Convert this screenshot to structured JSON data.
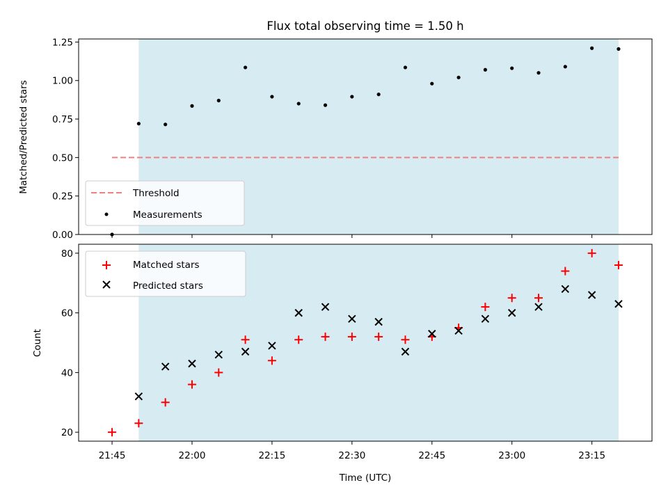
{
  "chart_data": [
    {
      "type": "scatter",
      "title": "Flux total observing time = 1.50 h",
      "xlabel": "",
      "ylabel": "Matched/Predicted stars",
      "ylim": [
        0,
        1.27
      ],
      "yticks": [
        0.0,
        0.25,
        0.5,
        0.75,
        1.0,
        1.25
      ],
      "ytick_labels": [
        "0.00",
        "0.25",
        "0.50",
        "0.75",
        "1.00",
        "1.25"
      ],
      "legend": {
        "placement": "lower-left",
        "entries": [
          "Threshold",
          "Measurements"
        ]
      },
      "shaded_region": {
        "x": [
          "21:50",
          "23:20"
        ],
        "color": "#add8e6"
      },
      "threshold": {
        "name": "Threshold",
        "value": 0.5,
        "x": [
          "21:45",
          "23:20"
        ],
        "color": "#f08080"
      },
      "series": [
        {
          "name": "Measurements",
          "color": "#000000",
          "x": [
            "21:45",
            "21:50",
            "21:55",
            "22:00",
            "22:05",
            "22:10",
            "22:15",
            "22:20",
            "22:25",
            "22:30",
            "22:35",
            "22:40",
            "22:45",
            "22:50",
            "22:55",
            "23:00",
            "23:05",
            "23:10",
            "23:15",
            "23:20"
          ],
          "values": [
            0.0,
            0.72,
            0.715,
            0.835,
            0.87,
            1.085,
            0.895,
            0.85,
            0.84,
            0.895,
            0.91,
            1.085,
            0.98,
            1.02,
            1.07,
            1.08,
            1.05,
            1.09,
            1.21,
            1.205
          ]
        }
      ]
    },
    {
      "type": "scatter",
      "xlabel": "Time (UTC)",
      "ylabel": "Count",
      "ylim": [
        17,
        83
      ],
      "yticks": [
        20,
        40,
        60,
        80
      ],
      "ytick_labels": [
        "20",
        "40",
        "60",
        "80"
      ],
      "xticks": [
        "21:45",
        "22:00",
        "22:15",
        "22:30",
        "22:45",
        "23:00",
        "23:15"
      ],
      "legend": {
        "placement": "top-left",
        "entries": [
          "Matched stars",
          "Predicted stars"
        ]
      },
      "shaded_region": {
        "x": [
          "21:50",
          "23:20"
        ],
        "color": "#add8e6"
      },
      "series": [
        {
          "name": "Matched stars",
          "marker": "+",
          "color": "#ff0000",
          "x": [
            "21:45",
            "21:50",
            "21:55",
            "22:00",
            "22:05",
            "22:10",
            "22:15",
            "22:20",
            "22:25",
            "22:30",
            "22:35",
            "22:40",
            "22:45",
            "22:50",
            "22:55",
            "23:00",
            "23:05",
            "23:10",
            "23:15",
            "23:20"
          ],
          "values": [
            20,
            23,
            30,
            36,
            40,
            51,
            44,
            51,
            52,
            52,
            52,
            51,
            52,
            55,
            62,
            65,
            65,
            74,
            80,
            76
          ]
        },
        {
          "name": "Predicted stars",
          "marker": "x",
          "color": "#000000",
          "x": [
            "21:50",
            "21:55",
            "22:00",
            "22:05",
            "22:10",
            "22:15",
            "22:20",
            "22:25",
            "22:30",
            "22:35",
            "22:40",
            "22:45",
            "22:50",
            "22:55",
            "23:00",
            "23:05",
            "23:10",
            "23:15",
            "23:20"
          ],
          "values": [
            32,
            42,
            43,
            46,
            47,
            49,
            60,
            62,
            58,
            57,
            47,
            53,
            54,
            58,
            60,
            62,
            68,
            66,
            63
          ]
        }
      ]
    }
  ]
}
